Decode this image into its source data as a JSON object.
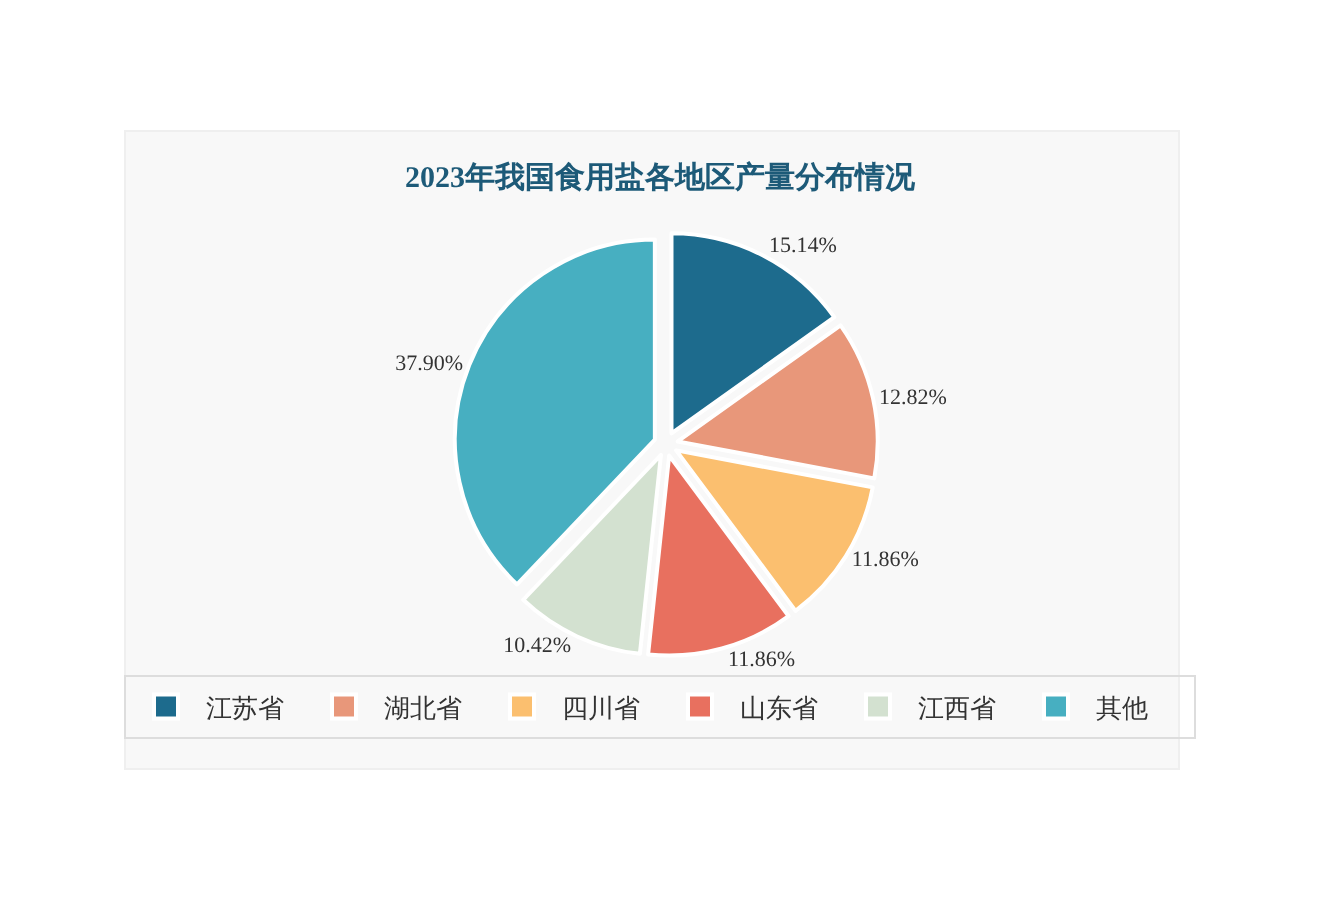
{
  "chart_data": {
    "type": "pie",
    "title": "2023年我国食用盐各地区产量分布情况",
    "categories": [
      "江苏省",
      "湖北省",
      "四川省",
      "山东省",
      "江西省",
      "其他"
    ],
    "values": [
      15.14,
      12.82,
      11.86,
      11.86,
      10.42,
      37.9
    ],
    "colors": [
      "#1d6b8d",
      "#e8977a",
      "#fbbf6f",
      "#e8705f",
      "#d3e1d0",
      "#47afc1"
    ],
    "value_labels": [
      "15.14%",
      "12.82%",
      "11.86%",
      "11.86%",
      "10.42%",
      "37.90%"
    ],
    "legend": "bottom"
  }
}
